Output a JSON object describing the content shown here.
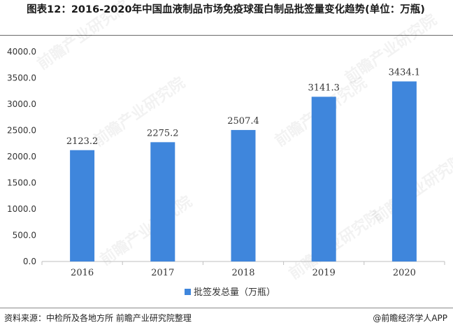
{
  "title": "图表12：2016-2020年中国血液制品市场免疫球蛋白制品批签量变化趋势(单位：万瓶)",
  "source": "资料来源：中检所及各地方所 前瞻产业研究院整理",
  "credit": "@前瞻经济学人APP",
  "watermark": "前瞻产业研究院",
  "colors": {
    "bar": "#3f86dc",
    "axis": "#bfbfbf",
    "text": "#333333"
  },
  "chart_data": {
    "type": "bar",
    "categories": [
      "2016",
      "2017",
      "2018",
      "2019",
      "2020"
    ],
    "series": [
      {
        "name": "批签发总量（万瓶）",
        "values": [
          2123.2,
          2275.2,
          2507.4,
          3141.3,
          3434.1
        ]
      }
    ],
    "data_labels": [
      "2123.2",
      "2275.2",
      "2507.4",
      "3141.3",
      "3434.1"
    ],
    "ylim": [
      0,
      4000
    ],
    "yticks": [
      "0.0",
      "500.0",
      "1000.0",
      "1500.0",
      "2000.0",
      "2500.0",
      "3000.0",
      "3500.0",
      "4000.0"
    ],
    "ytick_values": [
      0,
      500,
      1000,
      1500,
      2000,
      2500,
      3000,
      3500,
      4000
    ],
    "legend_position": "bottom",
    "grid": false
  }
}
